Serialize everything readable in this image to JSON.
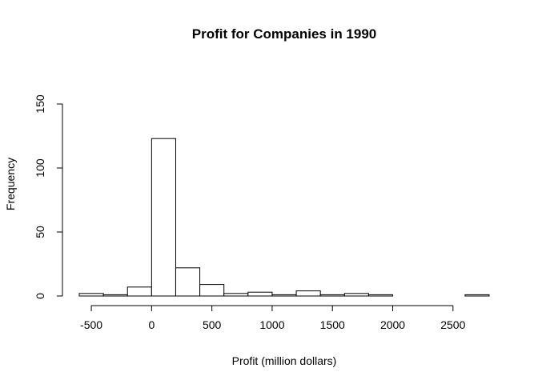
{
  "chart_data": {
    "type": "bar",
    "title": "Profit for Companies in 1990",
    "xlabel": "Profit (million dollars)",
    "ylabel": "Frequency",
    "bin_width": 200,
    "bins": [
      {
        "start": -600,
        "end": -400,
        "count": 2
      },
      {
        "start": -400,
        "end": -200,
        "count": 1
      },
      {
        "start": -200,
        "end": 0,
        "count": 7
      },
      {
        "start": 0,
        "end": 200,
        "count": 123
      },
      {
        "start": 200,
        "end": 400,
        "count": 22
      },
      {
        "start": 400,
        "end": 600,
        "count": 9
      },
      {
        "start": 600,
        "end": 800,
        "count": 2
      },
      {
        "start": 800,
        "end": 1000,
        "count": 3
      },
      {
        "start": 1000,
        "end": 1200,
        "count": 1
      },
      {
        "start": 1200,
        "end": 1400,
        "count": 4
      },
      {
        "start": 1400,
        "end": 1600,
        "count": 1
      },
      {
        "start": 1600,
        "end": 1800,
        "count": 2
      },
      {
        "start": 1800,
        "end": 2000,
        "count": 1
      },
      {
        "start": 2000,
        "end": 2200,
        "count": 0
      },
      {
        "start": 2200,
        "end": 2400,
        "count": 0
      },
      {
        "start": 2400,
        "end": 2600,
        "count": 0
      },
      {
        "start": 2600,
        "end": 2800,
        "count": 1
      }
    ],
    "x_ticks": [
      -500,
      0,
      500,
      1000,
      1500,
      2000,
      2500
    ],
    "x_tick_labels": [
      "-500",
      "0",
      "500",
      "1000",
      "1500",
      "2000",
      "2500"
    ],
    "y_ticks": [
      0,
      50,
      100,
      150
    ],
    "y_tick_labels": [
      "0",
      "50",
      "100",
      "150"
    ],
    "xlim": [
      -600,
      2800
    ],
    "ylim": [
      0,
      150
    ],
    "grid": false,
    "legend": "none"
  }
}
